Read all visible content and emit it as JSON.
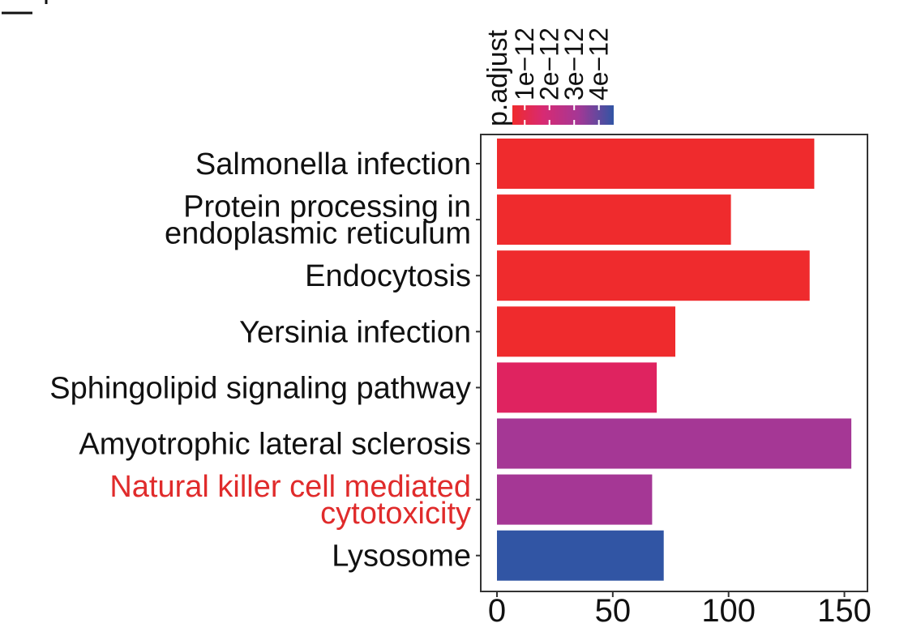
{
  "chart_data": {
    "type": "bar",
    "orientation": "horizontal",
    "categories": [
      "Salmonella infection",
      "Protein processing in endoplasmic reticulum",
      "Endocytosis",
      "Yersinia infection",
      "Sphingolipid signaling pathway",
      "Amyotrophic lateral sclerosis",
      "Natural killer cell mediated cytotoxicity",
      "Lysosome"
    ],
    "category_lines": [
      [
        "Salmonella infection"
      ],
      [
        "Protein processing in",
        "endoplasmic reticulum"
      ],
      [
        "Endocytosis"
      ],
      [
        "Yersinia infection"
      ],
      [
        "Sphingolipid signaling pathway"
      ],
      [
        "Amyotrophic lateral sclerosis"
      ],
      [
        "Natural killer cell mediated",
        "cytotoxicity"
      ],
      [
        "Lysosome"
      ]
    ],
    "highlighted_category": "Natural killer cell mediated cytotoxicity",
    "highlight_color": "#e02b2b",
    "values": [
      137,
      101,
      135,
      77,
      69,
      153,
      67,
      72
    ],
    "p_adjust": [
      5e-13,
      5e-13,
      5e-13,
      5e-13,
      1.9e-12,
      3e-12,
      3e-12,
      4.6e-12
    ],
    "bar_colors": [
      "#ef2b2d",
      "#ef2b2d",
      "#ef2b2d",
      "#ef2b2d",
      "#df2360",
      "#a53795",
      "#a53795",
      "#3155a4"
    ],
    "xlim": [
      0,
      160
    ],
    "xticks": [
      0,
      50,
      100,
      150
    ],
    "xlabel": "",
    "ylabel": "",
    "title": "",
    "grid": false,
    "legend": {
      "title": "p.adjust",
      "ticks": [
        "1e−12",
        "2e−12",
        "3e−12",
        "4e−12"
      ],
      "tick_values": [
        1e-12,
        2e-12,
        3e-12,
        4e-12
      ],
      "range": [
        5e-13,
        4.6e-12
      ],
      "gradient": [
        "#ef2b2d",
        "#d82a72",
        "#a53795",
        "#3155a4"
      ],
      "placement": "top"
    }
  }
}
